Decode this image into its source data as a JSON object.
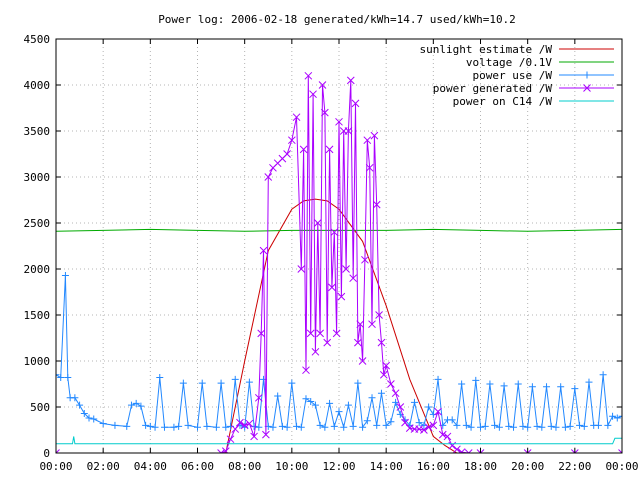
{
  "chart_data": {
    "type": "line",
    "title": "Power log: 2006-02-18 generated/kWh=14.7 used/kWh=10.2",
    "xlabel": "",
    "ylabel": "",
    "xlim": [
      0,
      24
    ],
    "ylim": [
      0,
      4500
    ],
    "grid": true,
    "legend_position": "top-right",
    "x_ticks": [
      "00:00",
      "02:00",
      "04:00",
      "06:00",
      "08:00",
      "10:00",
      "12:00",
      "14:00",
      "16:00",
      "18:00",
      "20:00",
      "22:00",
      "00:00"
    ],
    "y_ticks": [
      "0",
      "500",
      "1000",
      "1500",
      "2000",
      "2500",
      "3000",
      "3500",
      "4000",
      "4500"
    ],
    "series": [
      {
        "name": "sunlight estimate /W",
        "color": "#cc0000",
        "marker": "none",
        "x": [
          0,
          7.2,
          8.0,
          9.0,
          10.0,
          10.5,
          11.0,
          11.5,
          12.0,
          13.0,
          14.0,
          15.0,
          16.0,
          16.5,
          17.0,
          24
        ],
        "y": [
          0,
          0,
          1000,
          2200,
          2650,
          2740,
          2760,
          2740,
          2650,
          2300,
          1600,
          800,
          180,
          80,
          0,
          0
        ]
      },
      {
        "name": "voltage /0.1V",
        "color": "#00aa00",
        "marker": "none",
        "x": [
          0,
          2,
          4,
          6,
          8,
          10,
          12,
          14,
          16,
          18,
          20,
          22,
          24
        ],
        "y": [
          2410,
          2420,
          2430,
          2420,
          2410,
          2420,
          2420,
          2420,
          2430,
          2420,
          2410,
          2420,
          2430
        ]
      },
      {
        "name": "power use /W",
        "color": "#2288ff",
        "marker": "plus",
        "x": [
          0.0,
          0.2,
          0.4,
          0.5,
          0.6,
          0.8,
          1.0,
          1.2,
          1.4,
          1.6,
          2.0,
          2.5,
          3.0,
          3.2,
          3.4,
          3.6,
          3.8,
          4.0,
          4.2,
          4.4,
          4.6,
          5.0,
          5.2,
          5.4,
          5.6,
          6.0,
          6.2,
          6.4,
          6.8,
          7.0,
          7.2,
          7.4,
          7.6,
          7.8,
          8.0,
          8.2,
          8.4,
          8.6,
          8.8,
          9.0,
          9.2,
          9.4,
          9.6,
          9.8,
          10.0,
          10.2,
          10.4,
          10.6,
          10.8,
          11.0,
          11.2,
          11.4,
          11.6,
          11.8,
          12.0,
          12.2,
          12.4,
          12.6,
          12.8,
          13.0,
          13.2,
          13.4,
          13.6,
          13.8,
          14.0,
          14.2,
          14.4,
          14.6,
          14.8,
          15.0,
          15.2,
          15.4,
          15.6,
          15.8,
          16.0,
          16.2,
          16.4,
          16.6,
          16.8,
          17.0,
          17.2,
          17.4,
          17.6,
          17.8,
          18.0,
          18.2,
          18.4,
          18.6,
          18.8,
          19.0,
          19.2,
          19.4,
          19.6,
          19.8,
          20.0,
          20.2,
          20.4,
          20.6,
          20.8,
          21.0,
          21.2,
          21.4,
          21.6,
          21.8,
          22.0,
          22.2,
          22.4,
          22.6,
          22.8,
          23.0,
          23.2,
          23.4,
          23.6,
          23.8,
          24.0
        ],
        "y": [
          850,
          820,
          1930,
          820,
          600,
          600,
          520,
          430,
          380,
          370,
          320,
          300,
          290,
          520,
          540,
          510,
          300,
          290,
          280,
          820,
          280,
          280,
          290,
          760,
          300,
          280,
          760,
          290,
          280,
          760,
          280,
          290,
          800,
          300,
          280,
          770,
          290,
          280,
          800,
          290,
          280,
          620,
          290,
          280,
          760,
          290,
          280,
          590,
          560,
          520,
          300,
          280,
          540,
          290,
          450,
          280,
          520,
          290,
          760,
          280,
          350,
          600,
          300,
          650,
          300,
          340,
          550,
          420,
          360,
          300,
          550,
          330,
          300,
          500,
          420,
          800,
          300,
          360,
          360,
          300,
          750,
          300,
          280,
          790,
          280,
          290,
          750,
          300,
          280,
          730,
          290,
          280,
          750,
          290,
          280,
          720,
          290,
          280,
          720,
          290,
          280,
          720,
          280,
          290,
          700,
          300,
          290,
          770,
          300,
          300,
          850,
          300,
          400,
          380,
          400
        ]
      },
      {
        "name": "power generated /W",
        "color": "#aa00ff",
        "marker": "cross",
        "x": [
          0.0,
          7.0,
          7.2,
          7.4,
          7.6,
          7.8,
          8.0,
          8.2,
          8.4,
          8.6,
          8.7,
          8.8,
          8.9,
          9.0,
          9.2,
          9.4,
          9.6,
          9.8,
          10.0,
          10.2,
          10.4,
          10.5,
          10.6,
          10.7,
          10.8,
          10.9,
          11.0,
          11.1,
          11.2,
          11.3,
          11.4,
          11.5,
          11.6,
          11.7,
          11.8,
          11.9,
          12.0,
          12.1,
          12.2,
          12.3,
          12.4,
          12.5,
          12.6,
          12.7,
          12.8,
          12.9,
          13.0,
          13.1,
          13.2,
          13.3,
          13.4,
          13.5,
          13.6,
          13.7,
          13.8,
          13.9,
          14.0,
          14.2,
          14.4,
          14.6,
          14.8,
          15.0,
          15.2,
          15.4,
          15.6,
          15.8,
          16.0,
          16.2,
          16.4,
          16.6,
          16.8,
          17.0,
          17.2,
          17.5,
          18.0,
          20.0,
          22.0,
          24.0
        ],
        "y": [
          0,
          0,
          20,
          150,
          260,
          330,
          300,
          320,
          180,
          600,
          1300,
          2200,
          200,
          3000,
          3100,
          3150,
          3200,
          3250,
          3400,
          3650,
          2000,
          3300,
          900,
          4100,
          1300,
          3900,
          1100,
          2500,
          1300,
          4000,
          3700,
          1200,
          3300,
          1800,
          2400,
          1300,
          3600,
          1700,
          3500,
          2000,
          3500,
          4050,
          1900,
          3800,
          1200,
          1400,
          1000,
          2100,
          3400,
          3100,
          1400,
          3450,
          2700,
          1500,
          1200,
          850,
          950,
          750,
          650,
          500,
          330,
          270,
          260,
          260,
          250,
          280,
          300,
          450,
          200,
          180,
          80,
          40,
          10,
          0,
          0,
          0,
          0,
          0
        ]
      },
      {
        "name": "power on C14 /W",
        "color": "#00cccc",
        "marker": "none",
        "x": [
          0,
          0.7,
          0.75,
          0.8,
          2,
          6,
          10,
          14,
          18,
          22,
          23.6,
          23.7,
          24
        ],
        "y": [
          100,
          100,
          180,
          100,
          100,
          100,
          100,
          100,
          100,
          100,
          100,
          160,
          160
        ]
      }
    ]
  }
}
